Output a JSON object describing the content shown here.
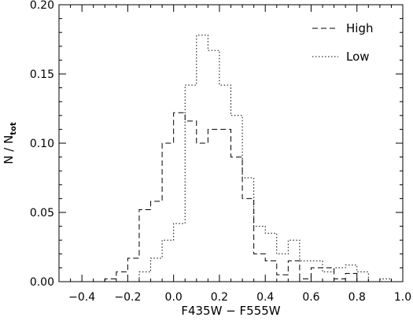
{
  "chart_data": {
    "type": "histogram",
    "xlabel": "F435W − F555W",
    "ylabel_main": "N / N",
    "ylabel_sub": "tot",
    "xlim": [
      -0.5,
      1.0
    ],
    "ylim": [
      0.0,
      0.2
    ],
    "xticks": [
      -0.4,
      -0.2,
      0.0,
      0.2,
      0.4,
      0.6,
      0.8,
      1.0
    ],
    "xtick_labels": [
      "−0.4",
      "−0.2",
      "0.0",
      "0.2",
      "0.4",
      "0.6",
      "0.8",
      "1.0"
    ],
    "yticks": [
      0.0,
      0.05,
      0.1,
      0.15,
      0.2
    ],
    "ytick_labels": [
      "0.00",
      "0.05",
      "0.10",
      "0.15",
      "0.20"
    ],
    "grid": false,
    "legend_position": "top-right",
    "bin_edges": [
      -0.3,
      -0.25,
      -0.2,
      -0.15,
      -0.1,
      -0.05,
      0.0,
      0.05,
      0.1,
      0.15,
      0.2,
      0.25,
      0.3,
      0.35,
      0.4,
      0.45,
      0.5,
      0.55,
      0.6,
      0.65,
      0.7,
      0.75,
      0.8,
      0.85,
      0.9,
      0.95
    ],
    "series": [
      {
        "name": "High",
        "style": "dashed",
        "values": [
          0.002,
          0.007,
          0.017,
          0.052,
          0.058,
          0.1,
          0.122,
          0.116,
          0.1,
          0.11,
          0.11,
          0.09,
          0.06,
          0.02,
          0.015,
          0.005,
          0.015,
          0.002,
          0.01,
          0.01,
          0.002,
          0.006,
          0.0,
          0.0,
          0.0
        ]
      },
      {
        "name": "Low",
        "style": "dotted",
        "values": [
          0.0,
          0.0,
          0.0,
          0.007,
          0.017,
          0.03,
          0.042,
          0.142,
          0.178,
          0.167,
          0.142,
          0.12,
          0.075,
          0.04,
          0.035,
          0.02,
          0.03,
          0.015,
          0.015,
          0.007,
          0.01,
          0.012,
          0.007,
          0.0,
          0.002
        ]
      }
    ]
  }
}
